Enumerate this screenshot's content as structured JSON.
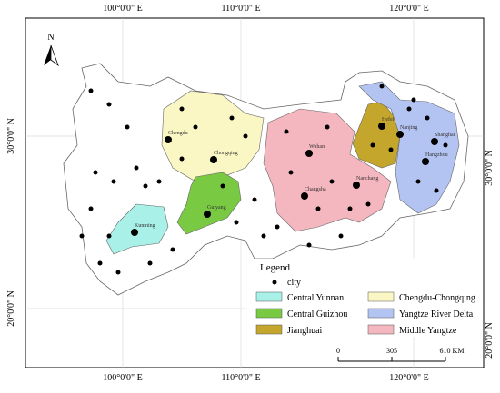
{
  "north": "N",
  "axes": {
    "top": [
      "100°0'0\" E",
      "110°0'0\" E",
      "120°0'0\" E"
    ],
    "bottom": [
      "100°0'0\" E",
      "110°0'0\" E",
      "120°0'0\" E"
    ],
    "left": [
      "30°0'0\" N",
      "20°0'0\" N"
    ],
    "right": [
      "30°0'0\" N",
      "20°0'0\" N"
    ]
  },
  "cities": [
    "Chengdu",
    "Chongqing",
    "Kunming",
    "Guiyang",
    "Wuhan",
    "Changsha",
    "Nanchang",
    "Hefei",
    "Nanjing",
    "Shanghai",
    "Hangzhou"
  ],
  "legend": {
    "title": "Legend",
    "city": "city",
    "items": [
      {
        "name": "Central Yunnan",
        "color": "#a8f0e8"
      },
      {
        "name": "Chengdu-Chongqing",
        "color": "#fbf7c4"
      },
      {
        "name": "Central Guizhou",
        "color": "#7ac943"
      },
      {
        "name": "Yangtze River Delta",
        "color": "#b4c4f2"
      },
      {
        "name": "Jianghuai",
        "color": "#c4a62c"
      },
      {
        "name": "Middle Yangtze",
        "color": "#f4b6bf"
      }
    ]
  },
  "scale": [
    "0",
    "305",
    "610 KM"
  ]
}
